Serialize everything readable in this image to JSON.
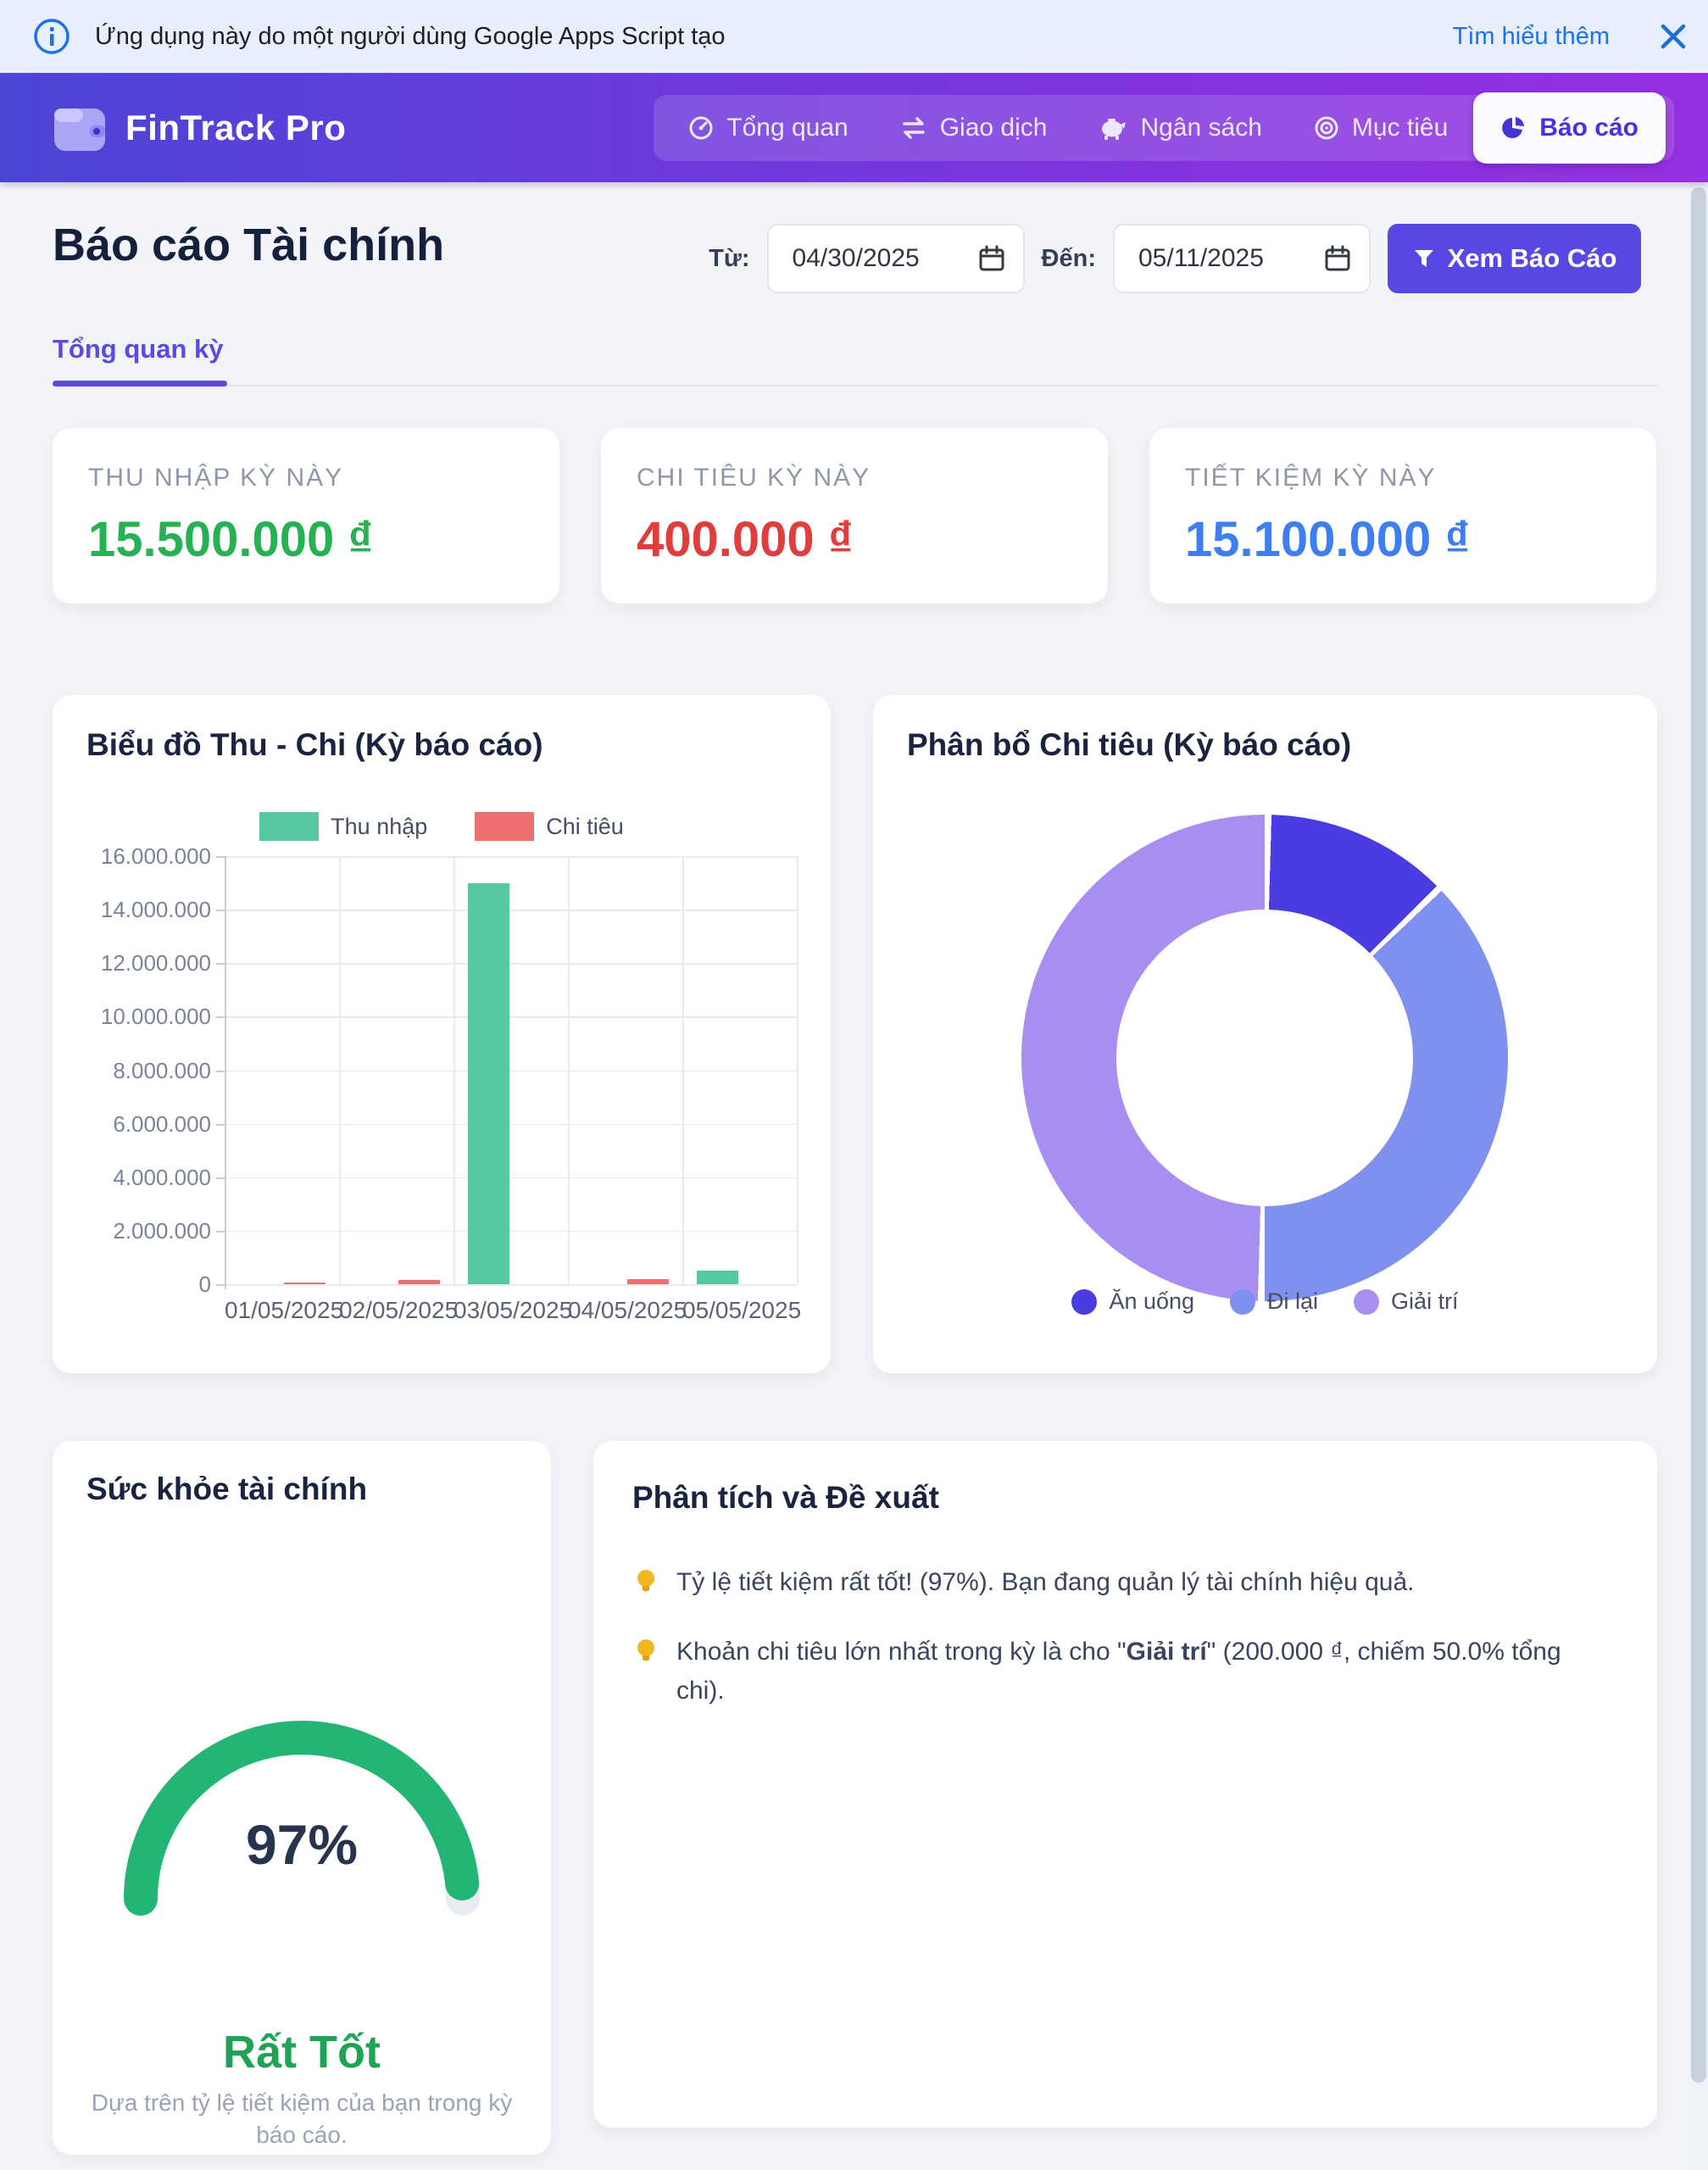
{
  "banner": {
    "text": "Ứng dụng này do một người dùng Google Apps Script tạo",
    "link_label": "Tìm hiểu thêm"
  },
  "nav": {
    "brand": "FinTrack Pro",
    "items": [
      {
        "label": "Tổng quan",
        "icon": "dashboard-icon",
        "active": false
      },
      {
        "label": "Giao dịch",
        "icon": "swap-icon",
        "active": false
      },
      {
        "label": "Ngân sách",
        "icon": "piggy-bank-icon",
        "active": false
      },
      {
        "label": "Mục tiêu",
        "icon": "target-icon",
        "active": false
      },
      {
        "label": "Báo cáo",
        "icon": "pie-chart-icon",
        "active": true
      }
    ]
  },
  "header": {
    "title": "Báo cáo Tài chính",
    "from_label": "Từ:",
    "from_value": "04/30/2025",
    "to_label": "Đến:",
    "to_value": "05/11/2025",
    "filter_button": "Xem Báo Cáo"
  },
  "tabs": {
    "active": "Tổng quan kỳ"
  },
  "stats": [
    {
      "label": "THU NHẬP KỲ NÀY",
      "value": "15.500.000 ₫",
      "color": "#26b252"
    },
    {
      "label": "CHI TIÊU KỲ NÀY",
      "value": "400.000 ₫",
      "color": "#e23d3d"
    },
    {
      "label": "TIẾT KIỆM KỲ NÀY",
      "value": "15.100.000 ₫",
      "color": "#3e7ef0"
    }
  ],
  "chart_data": [
    {
      "id": "income-expense-bar",
      "type": "bar",
      "title": "Biểu đồ Thu - Chi (Kỳ báo cáo)",
      "categories": [
        "01/05/2025",
        "02/05/2025",
        "03/05/2025",
        "04/05/2025",
        "05/05/2025"
      ],
      "series": [
        {
          "name": "Thu nhập",
          "color": "#57c7a0",
          "values": [
            0,
            0,
            15000000,
            0,
            500000
          ]
        },
        {
          "name": "Chi tiêu",
          "color": "#ee6f6f",
          "values": [
            50000,
            150000,
            0,
            200000,
            0
          ]
        }
      ],
      "ylim": [
        0,
        16000000
      ],
      "ytick_step": 2000000,
      "grid": true,
      "legend_position": "top"
    },
    {
      "id": "expense-donut",
      "type": "pie",
      "donut": true,
      "title": "Phân bổ Chi tiêu (Kỳ báo cáo)",
      "slices": [
        {
          "label": "Ăn uống",
          "value": 50000,
          "percent": 12.5,
          "color": "#4b3ce1"
        },
        {
          "label": "Đi lại",
          "value": 150000,
          "percent": 37.5,
          "color": "#8090ee"
        },
        {
          "label": "Giải trí",
          "value": 200000,
          "percent": 50.0,
          "color": "#a98ef2"
        }
      ],
      "legend_position": "bottom"
    },
    {
      "id": "health-gauge",
      "type": "gauge",
      "value_percent": 97,
      "label": "Rất Tốt",
      "color": "#22b573"
    }
  ],
  "health": {
    "title": "Sức khỏe tài chính",
    "percent_label": "97%",
    "status": "Rất Tốt",
    "caption": "Dựa trên tỷ lệ tiết kiệm của bạn trong kỳ báo cáo."
  },
  "analysis": {
    "title": "Phân tích và Đề xuất",
    "tips": [
      {
        "text": "Tỷ lệ tiết kiệm rất tốt! (97%). Bạn đang quản lý tài chính hiệu quả."
      },
      {
        "prefix": "Khoản chi tiêu lớn nhất trong kỳ là cho \"",
        "term": "Giải trí",
        "suffix": "\" (200.000 ₫, chiếm 50.0% tổng chi)."
      }
    ]
  },
  "colors": {
    "primary": "#5747e3",
    "nav_gradient_start": "#4b45d6",
    "nav_gradient_end": "#9630e2",
    "banner_bg": "#e8eefc",
    "link_blue": "#1a73e8",
    "income_green": "#26b252",
    "expense_red": "#e23d3d",
    "savings_blue": "#3e7ef0",
    "gauge_green": "#22b573"
  },
  "icons": {
    "info": "ⓘ",
    "close": "✕",
    "wallet": "wallet",
    "dashboard": "◔",
    "swap": "⇄",
    "piggy_bank": "piggy",
    "target": "◎",
    "pie_chart": "pie",
    "funnel": "▼",
    "calendar": "▭",
    "lightbulb": "💡"
  }
}
